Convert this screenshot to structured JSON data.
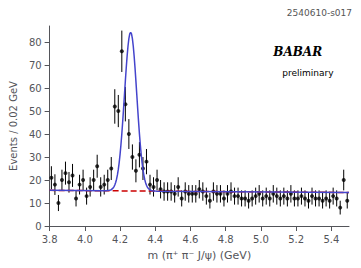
{
  "chart_data": {
    "type": "scatter",
    "title": "2540610-s017",
    "xlabel": "m (π⁺ π⁻ J/ψ) (GeV)",
    "ylabel": "Events / 0.02 GeV",
    "xlim": [
      3.8,
      5.5
    ],
    "ylim": [
      0,
      87
    ],
    "xticks": [
      3.8,
      {
        "value": 4.0,
        "label": "4.0"
      },
      4.2,
      4.4,
      4.6,
      4.8,
      {
        "value": 5.0,
        "label": "5.0"
      },
      5.2,
      5.4
    ],
    "yticks": [
      0,
      10,
      20,
      30,
      40,
      50,
      60,
      70,
      80
    ],
    "grid": false,
    "annotations": [
      "BABAR",
      "preliminary"
    ],
    "series": [
      {
        "type": "scatter",
        "color": "#000000",
        "marker": "circle",
        "x": [
          3.81,
          3.83,
          3.85,
          3.87,
          3.89,
          3.91,
          3.93,
          3.95,
          3.97,
          3.99,
          4.01,
          4.03,
          4.05,
          4.07,
          4.09,
          4.11,
          4.13,
          4.15,
          4.17,
          4.19,
          4.21,
          4.23,
          4.25,
          4.27,
          4.29,
          4.31,
          4.33,
          4.35,
          4.37,
          4.39,
          4.41,
          4.43,
          4.45,
          4.47,
          4.49,
          4.51,
          4.53,
          4.55,
          4.57,
          4.59,
          4.61,
          4.63,
          4.65,
          4.67,
          4.69,
          4.71,
          4.73,
          4.75,
          4.77,
          4.79,
          4.81,
          4.83,
          4.85,
          4.87,
          4.89,
          4.91,
          4.93,
          4.95,
          4.97,
          4.99,
          5.01,
          5.03,
          5.05,
          5.07,
          5.09,
          5.11,
          5.13,
          5.15,
          5.17,
          5.19,
          5.21,
          5.23,
          5.25,
          5.27,
          5.29,
          5.31,
          5.33,
          5.35,
          5.37,
          5.39,
          5.41,
          5.43,
          5.45,
          5.47,
          5.49
        ],
        "values": [
          21,
          18,
          10,
          20,
          23,
          19,
          22,
          12,
          18,
          20,
          13,
          17,
          20,
          26,
          17,
          18,
          20,
          25,
          52,
          50,
          76,
          53,
          40,
          30,
          24,
          31,
          25,
          28,
          18,
          17,
          20,
          16,
          15,
          15,
          15,
          14,
          17,
          12,
          15,
          14,
          14,
          14,
          16,
          15,
          13,
          11,
          15,
          14,
          14,
          12,
          14,
          15,
          13,
          13,
          12,
          12,
          11,
          12,
          13,
          14,
          12,
          13,
          12,
          14,
          13,
          12,
          13,
          12,
          14,
          12,
          12,
          13,
          12,
          11,
          13,
          12,
          12,
          11,
          12,
          11,
          13,
          12,
          8,
          20,
          11
        ],
        "yerr": [
          5,
          4.5,
          3.5,
          4.5,
          5,
          4.5,
          5,
          3.5,
          4.3,
          4.5,
          3.7,
          4.2,
          4.5,
          5,
          4.2,
          4.3,
          4.5,
          5,
          7.5,
          7,
          9,
          7.5,
          6.5,
          5.5,
          5,
          5.5,
          5,
          5.5,
          4.3,
          4.2,
          4.5,
          4,
          4,
          4,
          4,
          3.8,
          4.2,
          3.5,
          4,
          3.8,
          3.8,
          3.8,
          4,
          4,
          3.7,
          3.4,
          4,
          3.8,
          3.8,
          3.5,
          3.8,
          4,
          3.7,
          3.7,
          3.5,
          3.5,
          3.4,
          3.5,
          3.7,
          3.8,
          3.5,
          3.7,
          3.5,
          3.8,
          3.7,
          3.5,
          3.7,
          3.5,
          3.8,
          3.5,
          3.5,
          3.7,
          3.5,
          3.4,
          3.7,
          3.5,
          3.5,
          3.4,
          3.5,
          3.4,
          3.7,
          3.5,
          3,
          4.5,
          3.4
        ]
      },
      {
        "type": "line",
        "color": "#cc0000",
        "line_style": "dashed",
        "x": [
          3.8,
          5.5
        ],
        "values": [
          15.5,
          14.565
        ]
      },
      {
        "type": "line",
        "color": "#4444cc",
        "line_style": "solid",
        "x": [
          3.8,
          4.11,
          4.12,
          4.13,
          4.14,
          4.15,
          4.16,
          4.165,
          4.17,
          4.175,
          4.18,
          4.185,
          4.19,
          4.195,
          4.2,
          4.205,
          4.21,
          4.215,
          4.22,
          4.225,
          4.23,
          4.235,
          4.24,
          4.245,
          4.25,
          4.255,
          4.26,
          4.265,
          4.27,
          4.275,
          4.28,
          4.285,
          4.29,
          4.295,
          4.3,
          4.305,
          4.31,
          4.315,
          4.32,
          4.325,
          4.33,
          4.335,
          4.34,
          4.345,
          4.35,
          4.355,
          4.36,
          4.37,
          4.38,
          4.39,
          4.4,
          4.41,
          5.5
        ],
        "values": [
          15.5,
          15.34,
          15.35,
          15.39,
          15.51,
          15.8,
          16.47,
          17.03,
          17.83,
          18.91,
          20.35,
          22.23,
          24.62,
          27.58,
          31.15,
          35.35,
          40.15,
          45.46,
          51.18,
          57.12,
          63.05,
          68.72,
          73.86,
          78.2,
          81.49,
          83.55,
          84.25,
          83.54,
          81.48,
          78.18,
          73.84,
          68.7,
          63.02,
          57.08,
          51.14,
          45.41,
          40.09,
          35.29,
          31.09,
          27.51,
          24.55,
          22.15,
          20.27,
          18.82,
          17.73,
          16.93,
          16.36,
          15.68,
          15.37,
          15.25,
          15.19,
          15.17,
          14.565
        ]
      }
    ]
  }
}
